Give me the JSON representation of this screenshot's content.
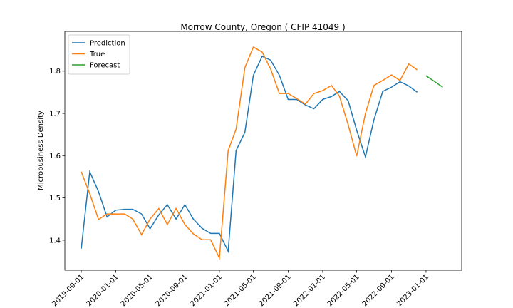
{
  "chart_data": {
    "type": "line",
    "title": "Morrow County, Oregon ( CFIP 41049 )",
    "ylabel": "Microbusiness Density",
    "xlim": [
      "2019-07-05",
      "2023-05-07"
    ],
    "xticks": [
      "2019-09-01",
      "2020-01-01",
      "2020-05-01",
      "2020-09-01",
      "2021-01-01",
      "2021-05-01",
      "2021-09-01",
      "2022-01-01",
      "2022-05-01",
      "2022-09-01",
      "2023-01-01"
    ],
    "ylim": [
      1.329,
      1.894
    ],
    "yticks": [
      1.4,
      1.5,
      1.6,
      1.7,
      1.8
    ],
    "legend": "upper left",
    "grid": false,
    "series": [
      {
        "name": "Prediction",
        "color": "#1f77b4",
        "x": [
          "2019-09-01",
          "2019-10-01",
          "2019-11-01",
          "2019-12-01",
          "2020-01-01",
          "2020-02-01",
          "2020-03-01",
          "2020-04-01",
          "2020-05-01",
          "2020-06-01",
          "2020-07-01",
          "2020-08-01",
          "2020-09-01",
          "2020-10-01",
          "2020-11-01",
          "2020-12-01",
          "2021-01-01",
          "2021-02-01",
          "2021-03-01",
          "2021-04-01",
          "2021-05-01",
          "2021-06-01",
          "2021-07-01",
          "2021-08-01",
          "2021-09-01",
          "2021-10-01",
          "2021-11-01",
          "2021-12-01",
          "2022-01-01",
          "2022-02-01",
          "2022-03-01",
          "2022-04-01",
          "2022-05-01",
          "2022-06-01",
          "2022-07-01",
          "2022-08-01",
          "2022-09-01",
          "2022-10-01",
          "2022-11-01",
          "2022-12-01"
        ],
        "values": [
          1.38,
          1.562,
          1.515,
          1.455,
          1.471,
          1.473,
          1.473,
          1.462,
          1.427,
          1.46,
          1.484,
          1.45,
          1.484,
          1.45,
          1.428,
          1.416,
          1.416,
          1.374,
          1.612,
          1.655,
          1.79,
          1.835,
          1.826,
          1.79,
          1.733,
          1.733,
          1.72,
          1.711,
          1.733,
          1.74,
          1.752,
          1.73,
          1.66,
          1.597,
          1.685,
          1.752,
          1.762,
          1.775,
          1.765,
          1.75
        ]
      },
      {
        "name": "True",
        "color": "#ff7f0e",
        "x": [
          "2019-09-01",
          "2019-10-01",
          "2019-11-01",
          "2019-12-01",
          "2020-01-01",
          "2020-02-01",
          "2020-03-01",
          "2020-04-01",
          "2020-05-01",
          "2020-06-01",
          "2020-07-01",
          "2020-08-01",
          "2020-09-01",
          "2020-10-01",
          "2020-11-01",
          "2020-12-01",
          "2021-01-01",
          "2021-02-01",
          "2021-03-01",
          "2021-04-01",
          "2021-05-01",
          "2021-06-01",
          "2021-07-01",
          "2021-08-01",
          "2021-09-01",
          "2021-10-01",
          "2021-11-01",
          "2021-12-01",
          "2022-01-01",
          "2022-02-01",
          "2022-03-01",
          "2022-04-01",
          "2022-05-01",
          "2022-06-01",
          "2022-07-01",
          "2022-08-01",
          "2022-09-01",
          "2022-10-01",
          "2022-11-01",
          "2022-12-01"
        ],
        "values": [
          1.562,
          1.51,
          1.449,
          1.462,
          1.462,
          1.462,
          1.45,
          1.413,
          1.45,
          1.475,
          1.437,
          1.475,
          1.437,
          1.415,
          1.401,
          1.401,
          1.358,
          1.612,
          1.663,
          1.808,
          1.857,
          1.845,
          1.805,
          1.747,
          1.747,
          1.735,
          1.722,
          1.747,
          1.754,
          1.766,
          1.741,
          1.673,
          1.599,
          1.7,
          1.766,
          1.778,
          1.791,
          1.778,
          1.817,
          1.803
        ]
      },
      {
        "name": "Forecast",
        "color": "#2ca02c",
        "x": [
          "2023-01-01",
          "2023-02-01",
          "2023-03-01"
        ],
        "values": [
          1.789,
          1.775,
          1.762
        ]
      }
    ]
  }
}
